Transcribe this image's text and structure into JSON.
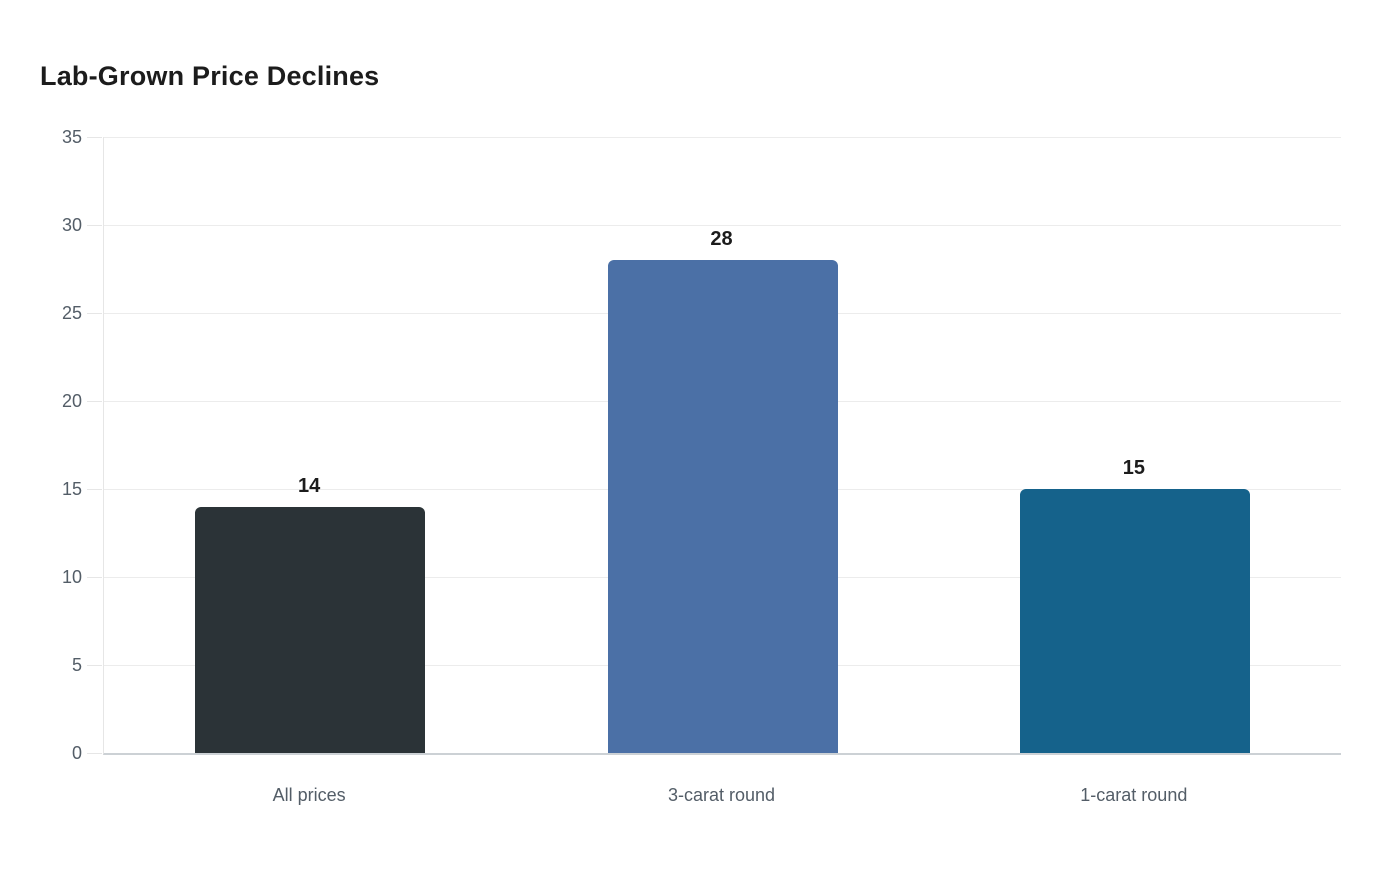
{
  "page": {
    "background_color": "#ffffff"
  },
  "chart_data": {
    "type": "bar",
    "title": "Lab-Grown Price Declines",
    "categories": [
      "All prices",
      "3-carat round",
      "1-carat round"
    ],
    "values": [
      14,
      28,
      15
    ],
    "value_labels": [
      "14",
      "28",
      "15"
    ],
    "bar_colors": [
      "#2b3337",
      "#4b70a6",
      "#15628b"
    ],
    "xlabel": "",
    "ylabel": "",
    "ylim": [
      0,
      35
    ],
    "yticks": [
      0,
      5,
      10,
      15,
      20,
      25,
      30,
      35
    ],
    "grid": "horizontal",
    "legend_position": "none",
    "colors": {
      "title_text": "#1c1c1c",
      "value_label_text": "#1c1c1c",
      "axis_tick_text": "#535d67",
      "gridline": "#ececec",
      "axis_line": "#e6e6e6",
      "baseline": "#ccd1d5"
    }
  }
}
